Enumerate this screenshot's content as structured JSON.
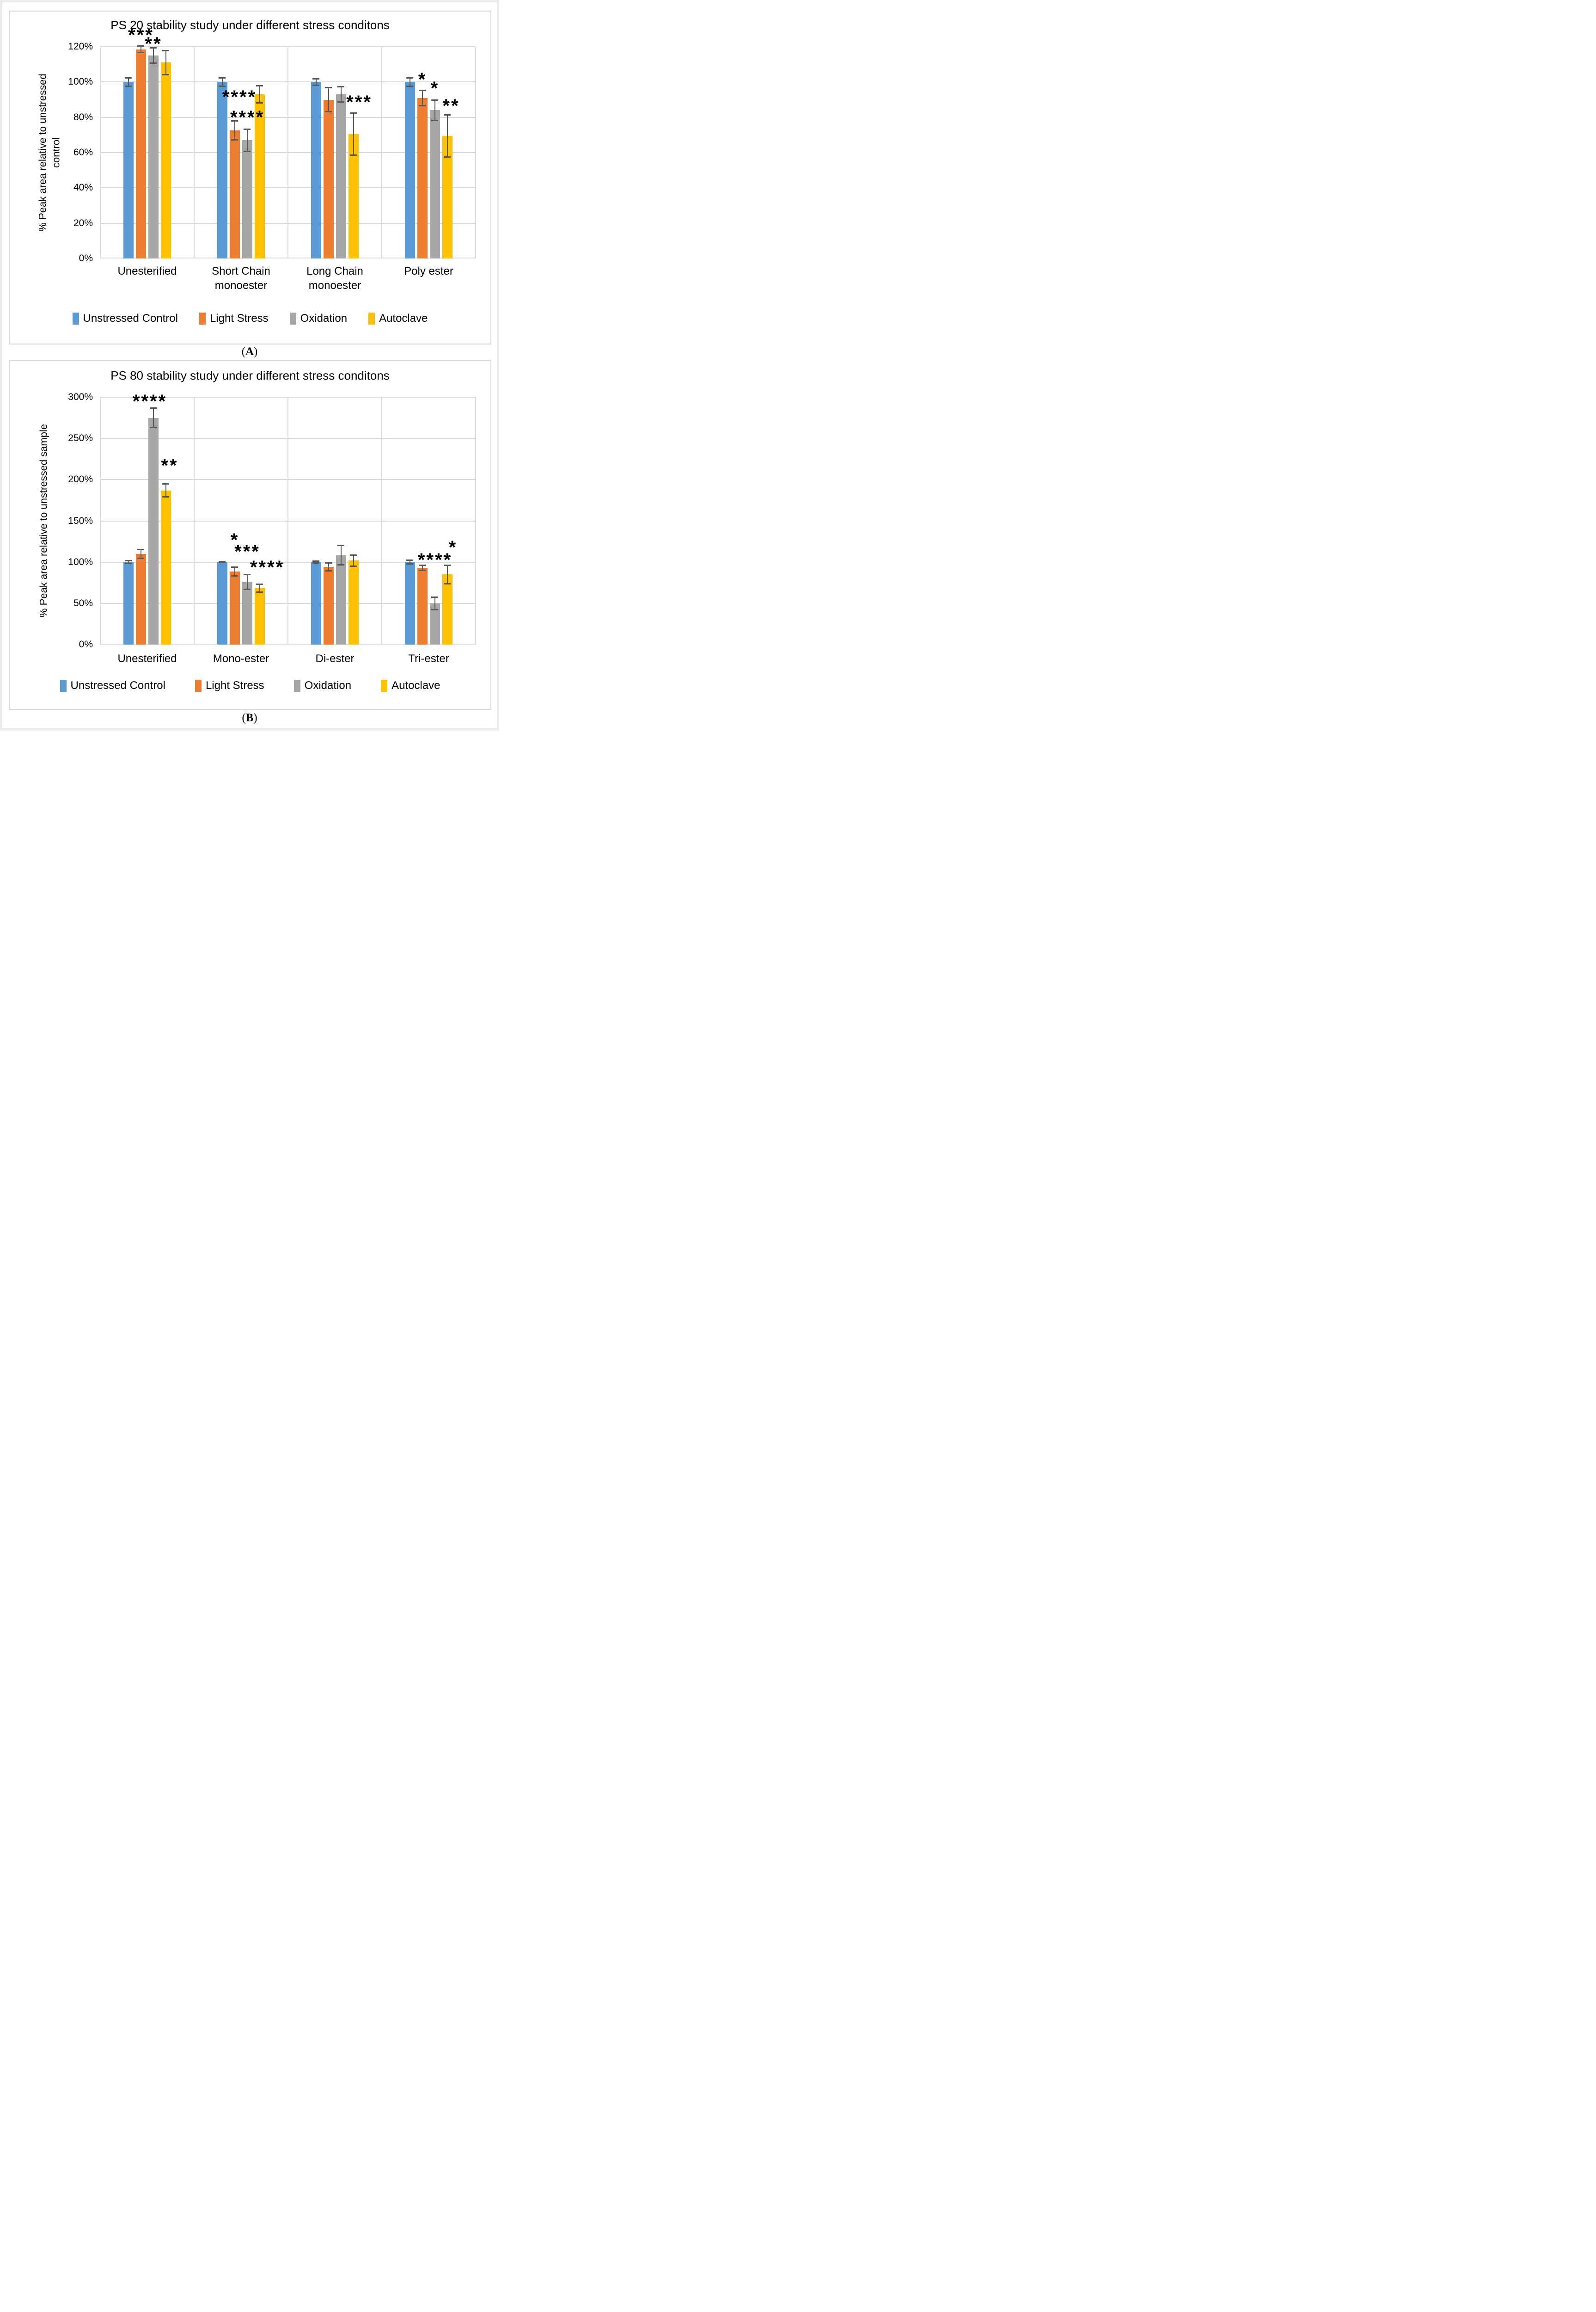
{
  "colors": {
    "unstressed_control": "#5B9BD5",
    "light_stress": "#ED7D31",
    "oxidation": "#A5A5A5",
    "autoclave": "#FFC000",
    "error_bar": "#595959",
    "gridline": "#D9D9D9",
    "panel_border": "#D9D9D9"
  },
  "chart_data": [
    {
      "id": "A",
      "type": "bar",
      "title": "PS 20 stability study under different stress conditons",
      "xlabel": "",
      "ylabel": "% Peak area relative to unstressed control",
      "ylabel_display": "% Peak area relative to unstressed\ncontrol",
      "ylim": [
        0,
        120
      ],
      "grid": true,
      "legend_position": "bottom",
      "yticks": [
        {
          "label": "0%",
          "value": 0
        },
        {
          "label": "20%",
          "value": 20
        },
        {
          "label": "40%",
          "value": 40
        },
        {
          "label": "60%",
          "value": 60
        },
        {
          "label": "80%",
          "value": 80
        },
        {
          "label": "100%",
          "value": 100
        },
        {
          "label": "120%",
          "value": 120
        }
      ],
      "categories": [
        "Unesterified",
        "Short Chain\nmonoester",
        "Long Chain\nmonoester",
        "Poly ester"
      ],
      "series": [
        {
          "name": "Unstressed Control",
          "color": "#5B9BD5",
          "values": [
            100,
            100,
            100,
            100
          ],
          "errors": [
            2.5,
            2.5,
            2,
            2.5
          ]
        },
        {
          "name": "Light Stress",
          "color": "#ED7D31",
          "values": [
            118.5,
            72.5,
            90,
            91
          ],
          "errors": [
            2,
            5.5,
            7,
            4.5
          ]
        },
        {
          "name": "Oxidation",
          "color": "#A5A5A5",
          "values": [
            115,
            67,
            93,
            84
          ],
          "errors": [
            4.5,
            6.5,
            4.5,
            6
          ]
        },
        {
          "name": "Autoclave",
          "color": "#FFC000",
          "values": [
            111,
            93,
            70.5,
            69.5
          ],
          "errors": [
            7,
            5,
            12,
            12
          ]
        }
      ],
      "significance": [
        {
          "ci": 0,
          "si": 1,
          "text": "***",
          "y": 127,
          "dx": 0
        },
        {
          "ci": 0,
          "si": 2,
          "text": "**",
          "y": 122,
          "dx": 0
        },
        {
          "ci": 1,
          "si": 1,
          "text": "****",
          "y": 92,
          "dx": 10
        },
        {
          "ci": 1,
          "si": 2,
          "text": "****",
          "y": 80.5,
          "dx": 0
        },
        {
          "ci": 2,
          "si": 3,
          "text": "***",
          "y": 89,
          "dx": 12
        },
        {
          "ci": 3,
          "si": 1,
          "text": "*",
          "y": 102,
          "dx": 0
        },
        {
          "ci": 3,
          "si": 2,
          "text": "*",
          "y": 97,
          "dx": 0
        },
        {
          "ci": 3,
          "si": 3,
          "text": "**",
          "y": 87,
          "dx": 8
        }
      ],
      "caption_open": "(",
      "caption_letter": "A",
      "caption_close": ")"
    },
    {
      "id": "B",
      "type": "bar",
      "title": "PS 80 stability study under different stress conditons",
      "xlabel": "",
      "ylabel": "% Peak area relative to unstressed sample",
      "ylabel_display": "% Peak area relative to unstressed sample",
      "ylim": [
        0,
        300
      ],
      "grid": true,
      "legend_position": "bottom",
      "yticks": [
        {
          "label": "0%",
          "value": 0
        },
        {
          "label": "50%",
          "value": 50
        },
        {
          "label": "100%",
          "value": 100
        },
        {
          "label": "150%",
          "value": 150
        },
        {
          "label": "200%",
          "value": 200
        },
        {
          "label": "250%",
          "value": 250
        },
        {
          "label": "300%",
          "value": 300
        }
      ],
      "categories": [
        "Unesterified",
        "Mono-ester",
        "Di-ester",
        "Tri-ester"
      ],
      "series": [
        {
          "name": "Unstressed Control",
          "color": "#5B9BD5",
          "values": [
            100,
            100,
            100,
            100
          ],
          "errors": [
            2,
            1,
            1.5,
            2.5
          ]
        },
        {
          "name": "Light Stress",
          "color": "#ED7D31",
          "values": [
            110,
            88.5,
            94,
            93
          ],
          "errors": [
            5.5,
            5.5,
            5,
            3.5
          ]
        },
        {
          "name": "Oxidation",
          "color": "#A5A5A5",
          "values": [
            275,
            76,
            108.5,
            50
          ],
          "errors": [
            12,
            9,
            12,
            8
          ]
        },
        {
          "name": "Autoclave",
          "color": "#FFC000",
          "values": [
            187,
            68.5,
            102,
            85
          ],
          "errors": [
            8,
            5,
            7,
            11.5
          ]
        }
      ],
      "significance": [
        {
          "ci": 0,
          "si": 2,
          "text": "****",
          "y": 296,
          "dx": -8
        },
        {
          "ci": 0,
          "si": 3,
          "text": "**",
          "y": 218,
          "dx": 8
        },
        {
          "ci": 1,
          "si": 1,
          "text": "*",
          "y": 128,
          "dx": 0
        },
        {
          "ci": 1,
          "si": 2,
          "text": "***",
          "y": 114,
          "dx": 0
        },
        {
          "ci": 1,
          "si": 3,
          "text": "****",
          "y": 95,
          "dx": 16
        },
        {
          "ci": 3,
          "si": 2,
          "text": "****",
          "y": 104,
          "dx": 0
        },
        {
          "ci": 3,
          "si": 3,
          "text": "*",
          "y": 119,
          "dx": 12
        }
      ],
      "caption_open": "(",
      "caption_letter": "B",
      "caption_close": ")"
    }
  ]
}
